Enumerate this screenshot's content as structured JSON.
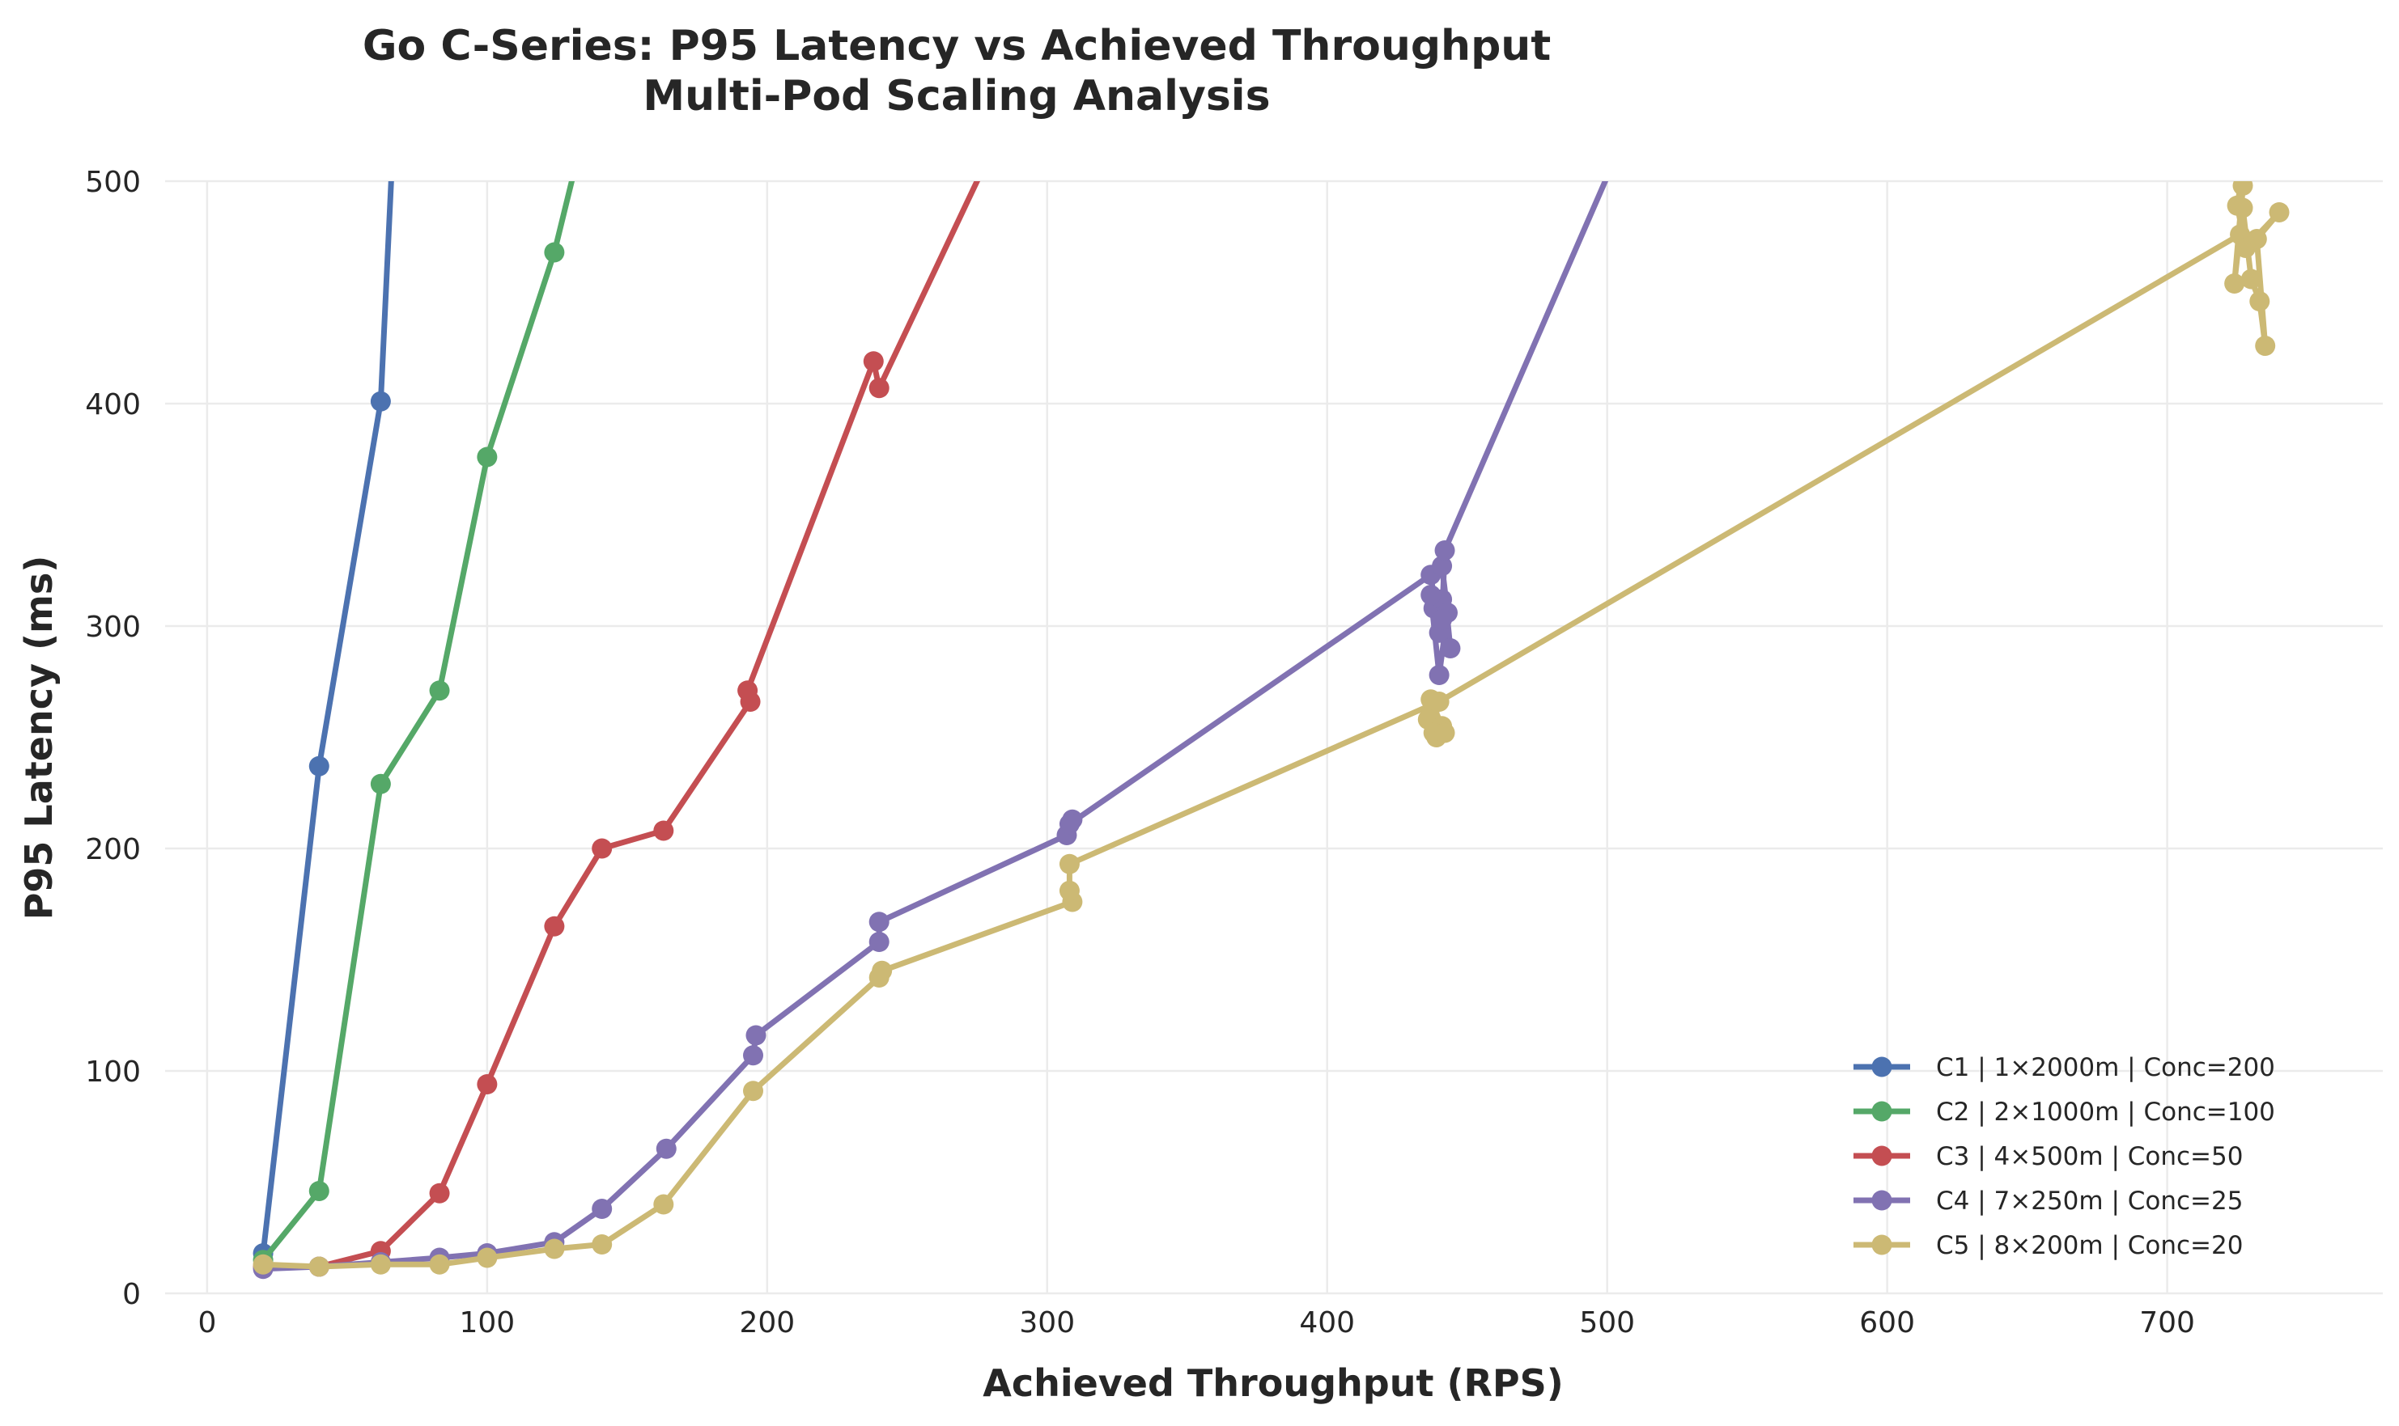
{
  "chart_data": {
    "type": "line",
    "title": "Go C-Series: P95 Latency vs Achieved Throughput",
    "subtitle": "Multi-Pod Scaling Analysis",
    "xlabel": "Achieved Throughput (RPS)",
    "ylabel": "P95 Latency (ms)",
    "xlim": [
      -15,
      777
    ],
    "ylim": [
      0,
      500
    ],
    "xticks": [
      0,
      100,
      200,
      300,
      400,
      500,
      600,
      700
    ],
    "yticks": [
      0,
      100,
      200,
      300,
      400,
      500
    ],
    "grid": true,
    "legend_position": "lower-right",
    "series": [
      {
        "name": "C1 | 1×2000m | Conc=200",
        "color": "#4c72b0",
        "x": [
          20,
          40,
          62,
          68
        ],
        "y": [
          18,
          237,
          401,
          560
        ]
      },
      {
        "name": "C2 | 2×1000m | Conc=100",
        "color": "#55a868",
        "x": [
          20,
          40,
          62,
          83,
          100,
          124,
          138
        ],
        "y": [
          15,
          46,
          229,
          271,
          376,
          468,
          540
        ]
      },
      {
        "name": "C3 | 4×500m | Conc=50",
        "color": "#c44e52",
        "x": [
          20,
          40,
          62,
          83,
          100,
          124,
          141,
          163,
          194,
          193,
          238,
          240,
          290
        ],
        "y": [
          12,
          12,
          19,
          45,
          94,
          165,
          200,
          208,
          266,
          271,
          419,
          407,
          540
        ]
      },
      {
        "name": "C4 | 7×250m | Conc=25",
        "color": "#8172b2",
        "x": [
          20,
          40,
          62,
          83,
          100,
          124,
          141,
          164,
          195,
          196,
          240,
          240,
          307,
          309,
          308,
          437,
          440,
          438,
          441,
          437,
          440,
          443,
          441,
          444,
          441,
          442,
          520
        ],
        "y": [
          11,
          12,
          14,
          16,
          18,
          23,
          38,
          65,
          107,
          116,
          158,
          167,
          206,
          213,
          211,
          323,
          297,
          308,
          312,
          314,
          278,
          306,
          327,
          290,
          303,
          334,
          560
        ]
      },
      {
        "name": "C5 | 8×200m | Conc=20",
        "color": "#ccb974",
        "x": [
          20,
          40,
          62,
          83,
          100,
          124,
          141,
          163,
          195,
          240,
          241,
          309,
          308,
          308,
          438,
          436,
          441,
          439,
          438,
          442,
          437,
          440,
          726,
          727,
          724,
          727,
          730,
          733,
          735,
          732,
          740,
          728,
          725,
          729,
          730
        ],
        "y": [
          13,
          12,
          13,
          13,
          16,
          20,
          22,
          40,
          91,
          142,
          145,
          176,
          181,
          193,
          265,
          258,
          255,
          250,
          252,
          252,
          267,
          266,
          476,
          498,
          454,
          488,
          456,
          446,
          426,
          474,
          486,
          470,
          489,
          520,
          520
        ]
      }
    ]
  }
}
